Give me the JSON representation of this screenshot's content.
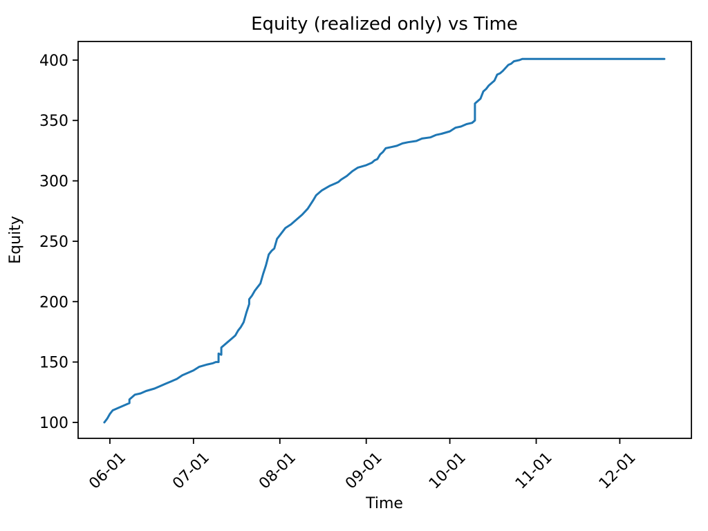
{
  "figure": {
    "background": "#ffffff",
    "spine_color": "#000000",
    "text_color": "#000000"
  },
  "chart_data": {
    "type": "line",
    "title": "Equity (realized only) vs Time",
    "xlabel": "Time",
    "ylabel": "Equity",
    "grid": false,
    "legend": "none",
    "x_tick_labels": [
      "06-01",
      "07-01",
      "08-01",
      "09-01",
      "10-01",
      "11-01",
      "12-01"
    ],
    "x_tick_rotation_deg": 45,
    "y_ticks": [
      100,
      150,
      200,
      250,
      300,
      350,
      400
    ],
    "xlim_day_of_year": [
      140.6,
      360.7
    ],
    "ylim": [
      86.8,
      415.4
    ],
    "series": [
      {
        "name": "equity-realized",
        "color": "#1f77b4",
        "points": [
          [
            "05-30",
            100
          ],
          [
            "05-31",
            103
          ],
          [
            "06-01",
            107
          ],
          [
            "06-02",
            110
          ],
          [
            "06-04",
            112
          ],
          [
            "06-06",
            114
          ],
          [
            "06-08",
            116
          ],
          [
            "06-08",
            119
          ],
          [
            "06-09",
            121
          ],
          [
            "06-10",
            123
          ],
          [
            "06-12",
            124
          ],
          [
            "06-14",
            126
          ],
          [
            "06-17",
            128
          ],
          [
            "06-19",
            130
          ],
          [
            "06-21",
            132
          ],
          [
            "06-23",
            134
          ],
          [
            "06-25",
            136
          ],
          [
            "06-27",
            139
          ],
          [
            "06-29",
            141
          ],
          [
            "07-01",
            143
          ],
          [
            "07-03",
            146
          ],
          [
            "07-06",
            148
          ],
          [
            "07-08",
            149
          ],
          [
            "07-09",
            150
          ],
          [
            "07-10",
            150
          ],
          [
            "07-10",
            157
          ],
          [
            "07-11",
            156
          ],
          [
            "07-11",
            162
          ],
          [
            "07-13",
            166
          ],
          [
            "07-15",
            170
          ],
          [
            "07-16",
            172
          ],
          [
            "07-17",
            176
          ],
          [
            "07-18",
            179
          ],
          [
            "07-19",
            183
          ],
          [
            "07-20",
            191
          ],
          [
            "07-21",
            198
          ],
          [
            "07-21",
            202
          ],
          [
            "07-22",
            205
          ],
          [
            "07-23",
            209
          ],
          [
            "07-24",
            212
          ],
          [
            "07-25",
            215
          ],
          [
            "07-26",
            223
          ],
          [
            "07-27",
            230
          ],
          [
            "07-28",
            239
          ],
          [
            "07-29",
            242
          ],
          [
            "07-30",
            244
          ],
          [
            "07-31",
            252
          ],
          [
            "08-01",
            255
          ],
          [
            "08-03",
            261
          ],
          [
            "08-05",
            264
          ],
          [
            "08-06",
            266
          ],
          [
            "08-09",
            272
          ],
          [
            "08-11",
            277
          ],
          [
            "08-13",
            284
          ],
          [
            "08-14",
            288
          ],
          [
            "08-16",
            292
          ],
          [
            "08-19",
            296
          ],
          [
            "08-21",
            298
          ],
          [
            "08-22",
            299
          ],
          [
            "08-23",
            301
          ],
          [
            "08-25",
            304
          ],
          [
            "08-27",
            308
          ],
          [
            "08-29",
            311
          ],
          [
            "09-01",
            313
          ],
          [
            "09-03",
            315
          ],
          [
            "09-04",
            317
          ],
          [
            "09-05",
            318
          ],
          [
            "09-06",
            322
          ],
          [
            "09-07",
            324
          ],
          [
            "09-08",
            327
          ],
          [
            "09-10",
            328
          ],
          [
            "09-12",
            329
          ],
          [
            "09-14",
            331
          ],
          [
            "09-16",
            332
          ],
          [
            "09-19",
            333
          ],
          [
            "09-21",
            335
          ],
          [
            "09-24",
            336
          ],
          [
            "09-26",
            338
          ],
          [
            "09-28",
            339
          ],
          [
            "10-01",
            341
          ],
          [
            "10-03",
            344
          ],
          [
            "10-05",
            345
          ],
          [
            "10-07",
            347
          ],
          [
            "10-09",
            348
          ],
          [
            "10-10",
            350
          ],
          [
            "10-10",
            364
          ],
          [
            "10-11",
            366
          ],
          [
            "10-12",
            368
          ],
          [
            "10-13",
            374
          ],
          [
            "10-14",
            376
          ],
          [
            "10-15",
            379
          ],
          [
            "10-17",
            383
          ],
          [
            "10-18",
            388
          ],
          [
            "10-19",
            389
          ],
          [
            "10-20",
            391
          ],
          [
            "10-22",
            396
          ],
          [
            "10-23",
            397
          ],
          [
            "10-24",
            399
          ],
          [
            "10-26",
            400
          ],
          [
            "10-27",
            401
          ],
          [
            "11-01",
            401
          ],
          [
            "11-15",
            401
          ],
          [
            "12-01",
            401
          ],
          [
            "12-17",
            401
          ]
        ]
      }
    ]
  }
}
